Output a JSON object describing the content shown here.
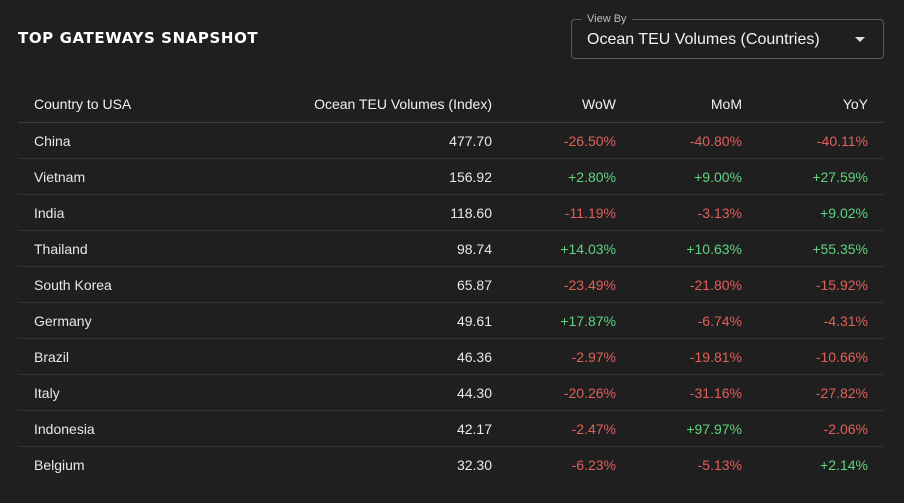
{
  "header": {
    "title": "TOP GATEWAYS SNAPSHOT"
  },
  "view_by": {
    "legend": "View By",
    "selected": "Ocean TEU Volumes (Countries)"
  },
  "table": {
    "columns": [
      "Country to USA",
      "Ocean TEU Volumes (Index)",
      "WoW",
      "MoM",
      "YoY"
    ],
    "rows": [
      {
        "country": "China",
        "index": "477.70",
        "wow": "-26.50%",
        "mom": "-40.80%",
        "yoy": "-40.11%"
      },
      {
        "country": "Vietnam",
        "index": "156.92",
        "wow": "+2.80%",
        "mom": "+9.00%",
        "yoy": "+27.59%"
      },
      {
        "country": "India",
        "index": "118.60",
        "wow": "-11.19%",
        "mom": "-3.13%",
        "yoy": "+9.02%"
      },
      {
        "country": "Thailand",
        "index": "98.74",
        "wow": "+14.03%",
        "mom": "+10.63%",
        "yoy": "+55.35%"
      },
      {
        "country": "South Korea",
        "index": "65.87",
        "wow": "-23.49%",
        "mom": "-21.80%",
        "yoy": "-15.92%"
      },
      {
        "country": "Germany",
        "index": "49.61",
        "wow": "+17.87%",
        "mom": "-6.74%",
        "yoy": "-4.31%"
      },
      {
        "country": "Brazil",
        "index": "46.36",
        "wow": "-2.97%",
        "mom": "-19.81%",
        "yoy": "-10.66%"
      },
      {
        "country": "Italy",
        "index": "44.30",
        "wow": "-20.26%",
        "mom": "-31.16%",
        "yoy": "-27.82%"
      },
      {
        "country": "Indonesia",
        "index": "42.17",
        "wow": "-2.47%",
        "mom": "+97.97%",
        "yoy": "-2.06%"
      },
      {
        "country": "Belgium",
        "index": "32.30",
        "wow": "-6.23%",
        "mom": "-5.13%",
        "yoy": "+2.14%"
      }
    ]
  },
  "colors": {
    "background": "#1f1f1f",
    "positive": "#5fd37f",
    "negative": "#e0605a",
    "text": "#e8e8e8"
  },
  "icons": {
    "select_caret": "caret-down-icon"
  }
}
